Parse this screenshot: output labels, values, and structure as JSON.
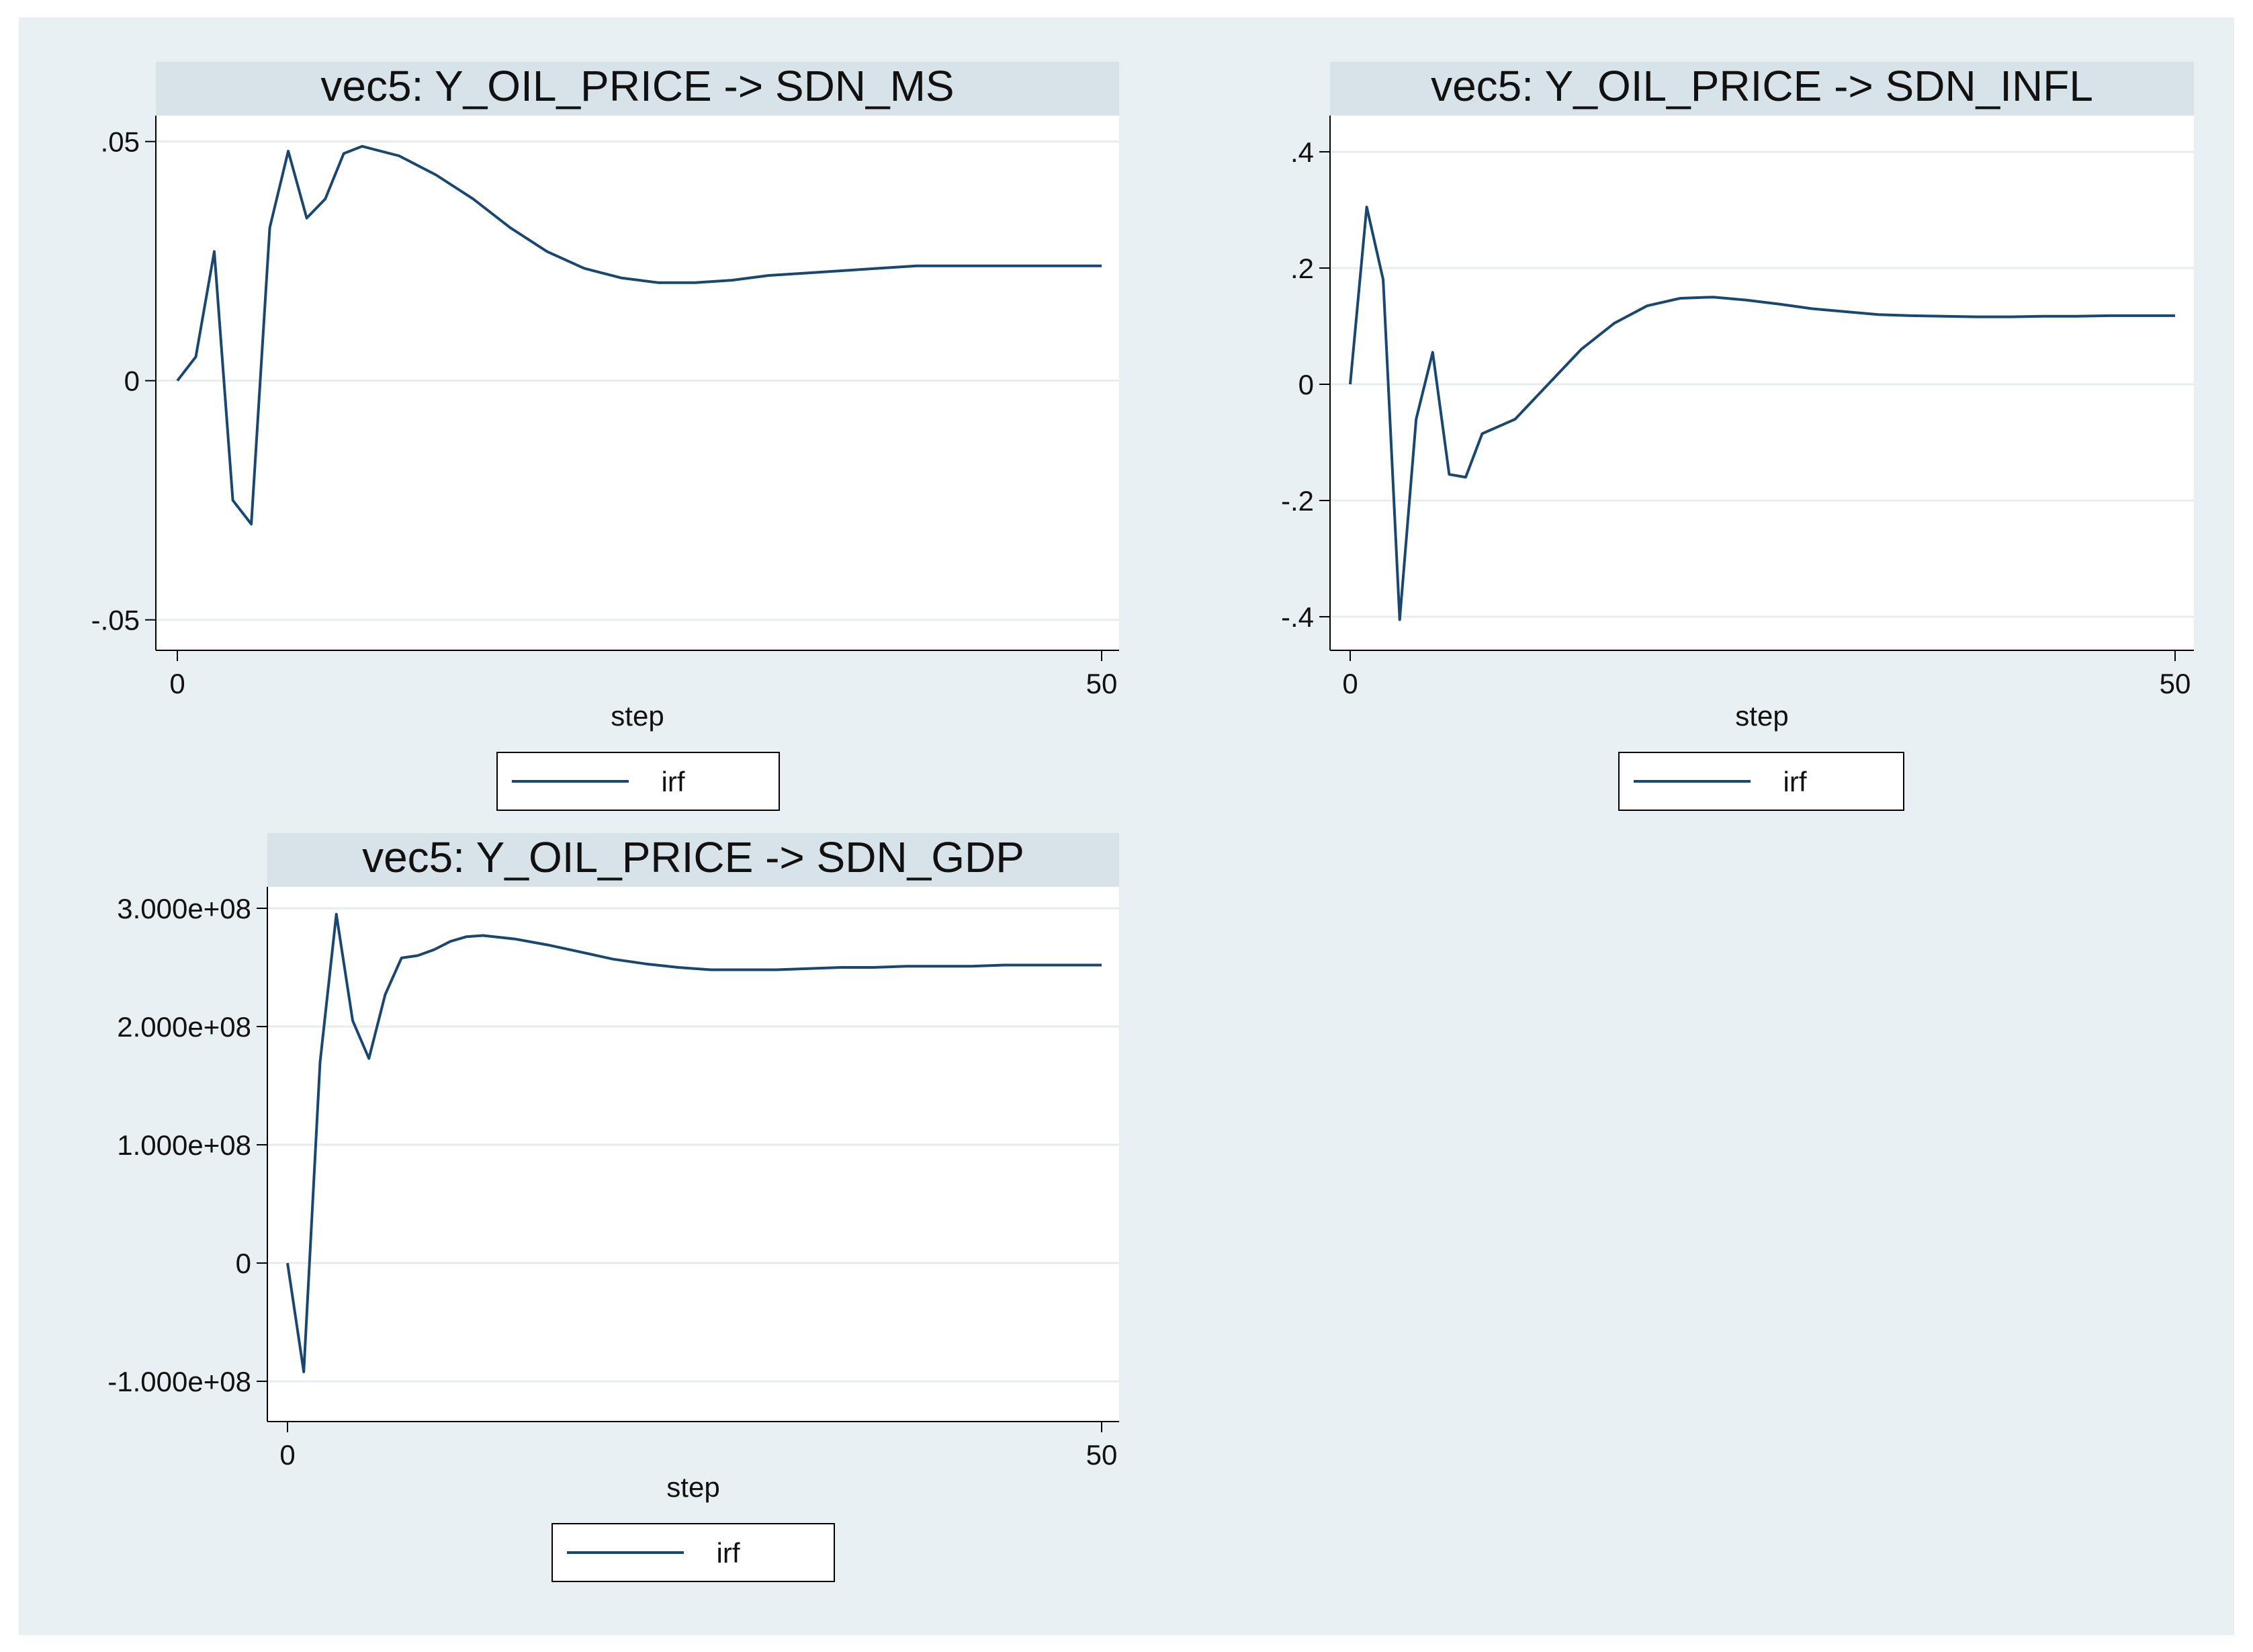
{
  "chart_data": [
    {
      "type": "line",
      "title": "vec5: Y_OIL_PRICE -> SDN_MS",
      "xlabel": "step",
      "xlim": [
        0,
        50
      ],
      "xticks": [
        {
          "v": 0,
          "label": "0"
        },
        {
          "v": 50,
          "label": "50"
        }
      ],
      "ylim": [
        -0.053,
        0.0515
      ],
      "yticks": [
        {
          "v": 0.05,
          "label": ".05"
        },
        {
          "v": 0,
          "label": "0"
        },
        {
          "v": -0.05,
          "label": "-.05"
        }
      ],
      "grid": true,
      "legend": "bottom",
      "series": [
        {
          "name": "irf",
          "x": [
            0,
            1,
            2,
            3,
            4,
            5,
            6,
            7,
            8,
            9,
            10,
            12,
            14,
            16,
            18,
            20,
            22,
            24,
            26,
            28,
            30,
            32,
            34,
            36,
            38,
            40,
            42,
            44,
            46,
            48,
            50
          ],
          "y": [
            0,
            0.005,
            0.027,
            -0.025,
            -0.03,
            0.032,
            0.048,
            0.034,
            0.038,
            0.0475,
            0.049,
            0.047,
            0.043,
            0.038,
            0.032,
            0.027,
            0.0235,
            0.0215,
            0.0205,
            0.0205,
            0.021,
            0.022,
            0.0225,
            0.023,
            0.0235,
            0.024,
            0.024,
            0.024,
            0.024,
            0.024,
            0.024
          ]
        }
      ]
    },
    {
      "type": "line",
      "title": "vec5: Y_OIL_PRICE -> SDN_INFL",
      "xlabel": "step",
      "xlim": [
        0,
        50
      ],
      "xticks": [
        {
          "v": 0,
          "label": "0"
        },
        {
          "v": 50,
          "label": "50"
        }
      ],
      "ylim": [
        -0.43,
        0.43
      ],
      "yticks": [
        {
          "v": 0.4,
          "label": ".4"
        },
        {
          "v": 0.2,
          "label": ".2"
        },
        {
          "v": 0,
          "label": "0"
        },
        {
          "v": -0.2,
          "label": "-.2"
        },
        {
          "v": -0.4,
          "label": "-.4"
        }
      ],
      "grid": true,
      "legend": "bottom",
      "series": [
        {
          "name": "irf",
          "x": [
            0,
            1,
            2,
            3,
            4,
            5,
            6,
            7,
            8,
            10,
            12,
            14,
            16,
            18,
            20,
            22,
            24,
            26,
            28,
            30,
            32,
            34,
            36,
            38,
            40,
            42,
            44,
            46,
            48,
            50
          ],
          "y": [
            0,
            0.305,
            0.18,
            -0.405,
            -0.06,
            0.055,
            -0.155,
            -0.16,
            -0.085,
            -0.06,
            0,
            0.06,
            0.105,
            0.135,
            0.148,
            0.15,
            0.145,
            0.138,
            0.13,
            0.125,
            0.12,
            0.118,
            0.117,
            0.116,
            0.116,
            0.117,
            0.117,
            0.118,
            0.118,
            0.118
          ]
        }
      ]
    },
    {
      "type": "line",
      "title": "vec5: Y_OIL_PRICE -> SDN_GDP",
      "xlabel": "step",
      "xlim": [
        0,
        50
      ],
      "xticks": [
        {
          "v": 0,
          "label": "0"
        },
        {
          "v": 50,
          "label": "50"
        }
      ],
      "ylim": [
        -117000000,
        300000000
      ],
      "yticks": [
        {
          "v": 300000000,
          "label": "3.000e+08"
        },
        {
          "v": 200000000,
          "label": "2.000e+08"
        },
        {
          "v": 100000000,
          "label": "1.000e+08"
        },
        {
          "v": 0,
          "label": "0"
        },
        {
          "v": -100000000,
          "label": "-1.000e+08"
        }
      ],
      "grid": true,
      "legend": "bottom",
      "series": [
        {
          "name": "irf",
          "x": [
            0,
            1,
            2,
            3,
            4,
            5,
            6,
            7,
            8,
            9,
            10,
            11,
            12,
            14,
            16,
            18,
            20,
            22,
            24,
            26,
            28,
            30,
            32,
            34,
            36,
            38,
            40,
            42,
            44,
            46,
            48,
            50
          ],
          "y": [
            0,
            -92000000,
            170000000,
            295000000,
            205000000,
            173000000,
            227000000,
            258000000,
            260000000,
            265000000,
            272000000,
            276000000,
            277000000,
            274000000,
            269000000,
            263000000,
            257000000,
            253000000,
            250000000,
            248000000,
            248000000,
            248000000,
            249000000,
            250000000,
            250000000,
            251000000,
            251000000,
            251000000,
            252000000,
            252000000,
            252000000,
            252000000
          ]
        }
      ]
    }
  ]
}
